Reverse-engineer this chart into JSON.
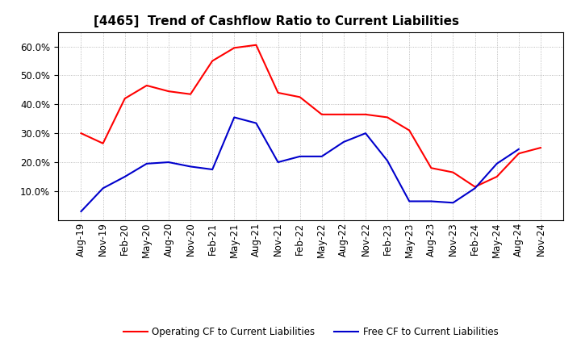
{
  "title": "[4465]  Trend of Cashflow Ratio to Current Liabilities",
  "x_labels": [
    "Aug-19",
    "Nov-19",
    "Feb-20",
    "May-20",
    "Aug-20",
    "Nov-20",
    "Feb-21",
    "May-21",
    "Aug-21",
    "Nov-21",
    "Feb-22",
    "May-22",
    "Aug-22",
    "Nov-22",
    "Feb-23",
    "May-23",
    "Aug-23",
    "Nov-23",
    "Feb-24",
    "May-24",
    "Aug-24",
    "Nov-24"
  ],
  "operating_cf": [
    30.0,
    26.5,
    42.0,
    46.5,
    44.5,
    43.5,
    55.0,
    59.5,
    60.5,
    44.0,
    42.5,
    36.5,
    36.5,
    36.5,
    35.5,
    31.0,
    18.0,
    16.5,
    11.5,
    15.0,
    23.0,
    25.0
  ],
  "free_cf": [
    3.0,
    11.0,
    15.0,
    19.5,
    20.0,
    18.5,
    17.5,
    35.5,
    33.5,
    20.0,
    22.0,
    22.0,
    27.0,
    30.0,
    20.5,
    6.5,
    6.5,
    6.0,
    11.0,
    19.5,
    24.5,
    null
  ],
  "ylim": [
    0,
    65
  ],
  "yticks": [
    10,
    20,
    30,
    40,
    50,
    60
  ],
  "operating_color": "#FF0000",
  "free_color": "#0000CC",
  "legend_operating": "Operating CF to Current Liabilities",
  "legend_free": "Free CF to Current Liabilities",
  "bg_color": "#FFFFFF",
  "plot_bg_color": "#FFFFFF",
  "grid_color": "#AAAAAA",
  "title_fontsize": 11,
  "tick_fontsize": 8.5
}
